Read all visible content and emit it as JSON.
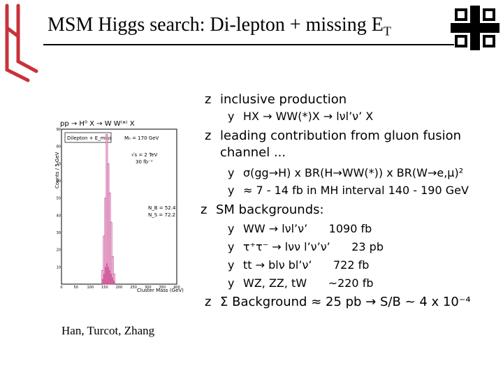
{
  "slide": {
    "title": "MSM Higgs search: Di-lepton + missing E",
    "title_sub": "T",
    "credit": "Han, Turcot, Zhang"
  },
  "plot": {
    "header": "pp → H⁰ X → W W⁽*⁾ X",
    "box_title": "Dilepton + E_miss",
    "mass_label": "Mₕ = 170 GeV",
    "energy_label": "√s = 2 TeV",
    "lumi_label": "30 fb⁻¹",
    "nb_label": "N_B = 52.4",
    "ns_label": "N_S = 72.2",
    "ylabel": "Counts / 5 GeV",
    "xlabel": "Cluster Mass (GeV)",
    "y_ticks": [
      "10",
      "20",
      "30",
      "40",
      "50",
      "60",
      "70",
      "80",
      "90"
    ],
    "x_ticks": [
      "0",
      "50",
      "100",
      "150",
      "200",
      "250",
      "300",
      "350",
      "400"
    ]
  },
  "bullets": [
    {
      "mark": "z",
      "text": "inclusive production"
    },
    {
      "mark": "y",
      "text": "HX → WW(*)X → lνl’ν’ X"
    },
    {
      "mark": "z",
      "text": "leading contribution from gluon fusion"
    },
    {
      "mark": "",
      "text": "channel ..."
    },
    {
      "mark": "y",
      "text": "σ(gg→H) x BR(H→WW(*)) x BR(W→e,μ)²"
    },
    {
      "mark": "y",
      "text": "≈ 7 - 14 fb in MH interval 140 - 190 GeV"
    },
    {
      "mark": "z",
      "text": "SM backgrounds:"
    },
    {
      "mark": "y",
      "text": "WW → lνl’ν’      1090 fb"
    },
    {
      "mark": "y",
      "text": "τ⁺τ⁻ → lνν l’ν’ν’      23 pb"
    },
    {
      "mark": "y",
      "text": "tt → blν bl’ν’      722 fb"
    },
    {
      "mark": "y",
      "text": "WZ, ZZ, tW      ~220 fb"
    },
    {
      "mark": "z",
      "text": "Σ Background ≈ 25 pb → S/B ~ 4 x 10⁻⁴"
    }
  ],
  "chart_data": {
    "type": "bar",
    "title": "pp → H⁰ X → W W⁽*⁾ X",
    "xlabel": "Cluster Mass (GeV)",
    "ylabel": "Counts / 5 GeV",
    "xlim": [
      0,
      400
    ],
    "ylim": [
      0,
      90
    ],
    "bin_width": 5,
    "series": [
      {
        "name": "signal",
        "x": [
          140,
          145,
          150,
          155,
          160,
          165,
          170,
          175,
          180
        ],
        "values": [
          5,
          22,
          40,
          75,
          60,
          45,
          30,
          12,
          4
        ]
      },
      {
        "name": "background",
        "x": [
          140,
          145,
          150,
          155,
          160,
          165,
          170,
          175,
          180
        ],
        "values": [
          3,
          6,
          10,
          12,
          10,
          8,
          6,
          4,
          2
        ]
      }
    ]
  }
}
